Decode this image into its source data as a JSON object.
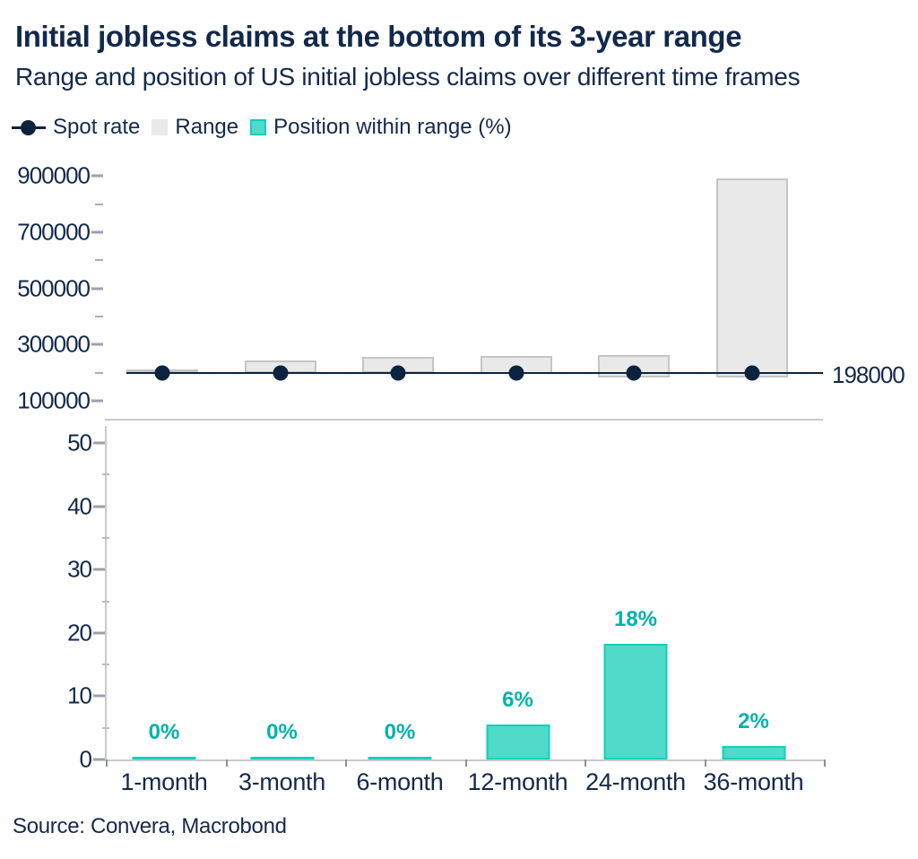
{
  "title": "Initial jobless claims at the bottom of its 3-year range",
  "subtitle": "Range and position of US initial jobless claims over different time frames",
  "source": "Source: Convera, Macrobond",
  "spot_annotation": "198000",
  "legend": {
    "items": [
      {
        "label": "Spot rate",
        "marker": "dot-line-icon",
        "color": "#0c2340"
      },
      {
        "label": "Range",
        "marker": "square-icon",
        "color": "#e9e9e9"
      },
      {
        "label": "Position within range (%)",
        "marker": "square-icon",
        "color": "#4fdac9"
      }
    ]
  },
  "colors": {
    "navy_text": "#13294b",
    "spot_navy": "#0c2340",
    "range_fill": "#e9e9e9",
    "range_border": "#c5c5c5",
    "position_fill": "#4fdac9",
    "position_border": "#12cfbc",
    "position_label": "#00b2a9",
    "spine_gray": "#c9c9c9"
  },
  "chart_data": [
    {
      "panel": "top",
      "type": "bar",
      "subtype": "range-bars-with-spot-markers",
      "categories": [
        "1-month",
        "3-month",
        "6-month",
        "12-month",
        "24-month",
        "36-month"
      ],
      "series": [
        {
          "name": "Range",
          "type": "range-bar",
          "min": [
            198000,
            198000,
            198000,
            194000,
            184000,
            184000
          ],
          "max": [
            211000,
            245000,
            255000,
            258000,
            262000,
            890000
          ]
        },
        {
          "name": "Spot rate",
          "type": "line-marker",
          "values": [
            198000,
            198000,
            198000,
            198000,
            198000,
            198000
          ]
        }
      ],
      "spot_value": 198000,
      "spot_label": "198000",
      "ytick_labels": [
        "900000",
        "700000",
        "500000",
        "300000",
        "100000"
      ],
      "ytick_values": [
        900000,
        700000,
        500000,
        300000,
        100000
      ],
      "yminor_values": [
        800000,
        600000,
        400000,
        200000
      ],
      "ylim": [
        36000,
        936000
      ],
      "grid": false,
      "legend_position": "top"
    },
    {
      "panel": "bottom",
      "type": "bar",
      "categories": [
        "1-month",
        "3-month",
        "6-month",
        "12-month",
        "24-month",
        "36-month"
      ],
      "values": [
        0,
        0,
        0,
        6,
        18,
        2
      ],
      "drawn_values": [
        0.3,
        0.3,
        0.3,
        5.5,
        18.3,
        2.1
      ],
      "labels": [
        "0%",
        "0%",
        "0%",
        "6%",
        "18%",
        "2%"
      ],
      "ylabel": "Position within range (%)",
      "ytick_labels": [
        "50",
        "40",
        "30",
        "20",
        "10",
        "0"
      ],
      "ytick_values": [
        50,
        40,
        30,
        20,
        10,
        0
      ],
      "yminor_values": [
        45,
        35,
        25,
        15,
        5
      ],
      "ylim": [
        0,
        52.7
      ],
      "grid": false
    }
  ]
}
